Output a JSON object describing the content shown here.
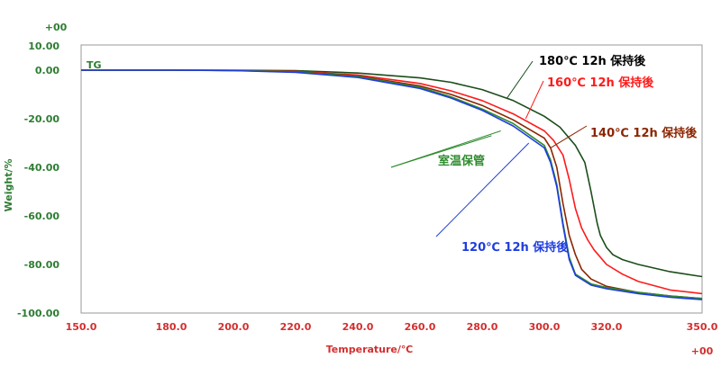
{
  "chart_data": {
    "type": "line",
    "xlabel": "Temperature/℃",
    "ylabel": "Weight/%",
    "xlim": [
      150.0,
      350.0
    ],
    "ylim": [
      -100.0,
      10.0
    ],
    "x_ticks": [
      "150.0",
      "180.0",
      "200.0",
      "220.0",
      "240.0",
      "260.0",
      "280.0",
      "300.0",
      "320.0",
      "350.0"
    ],
    "y_ticks": [
      "10.00",
      "0.00",
      "-20.00",
      "-40.00",
      "-60.00",
      "-80.00",
      "-100.00"
    ],
    "x_tick_values": [
      150,
      180,
      200,
      220,
      240,
      260,
      280,
      300,
      320,
      350
    ],
    "y_tick_values": [
      10,
      0,
      -20,
      -40,
      -60,
      -80,
      -100
    ],
    "x_exponent_label": "+00",
    "y_exponent_label": "+00",
    "curve_label": "TG",
    "series": [
      {
        "name": "180℃ 12h 保持後",
        "color": "#1b4d1b",
        "x": [
          150,
          180,
          200,
          220,
          240,
          260,
          270,
          280,
          290,
          300,
          305,
          310,
          313,
          315,
          317,
          318,
          320,
          322,
          325,
          330,
          340,
          350
        ],
        "y": [
          0,
          0,
          0,
          -0.2,
          -1.2,
          -3.2,
          -5,
          -8,
          -12.5,
          -19,
          -23.5,
          -31,
          -38,
          -50,
          -63,
          -68,
          -73,
          -76,
          -78,
          -80,
          -83,
          -85
        ]
      },
      {
        "name": "160℃ 12h 保持後",
        "color": "#ff1a1a",
        "x": [
          150,
          180,
          200,
          220,
          240,
          260,
          270,
          280,
          290,
          300,
          303,
          306,
          308,
          310,
          312,
          314,
          316,
          320,
          325,
          330,
          340,
          350
        ],
        "y": [
          0,
          0,
          -0.1,
          -0.5,
          -2,
          -5.5,
          -8.5,
          -12.5,
          -18,
          -25,
          -29,
          -35,
          -45,
          -57,
          -65,
          -70,
          -74,
          -80,
          -84,
          -87,
          -90.5,
          -92
        ]
      },
      {
        "name": "140℃ 12h 保持後",
        "color": "#8b2500",
        "x": [
          150,
          180,
          200,
          220,
          240,
          260,
          270,
          280,
          290,
          300,
          302,
          304,
          306,
          308,
          310,
          312,
          315,
          320,
          330,
          340,
          350
        ],
        "y": [
          0,
          0,
          -0.1,
          -0.6,
          -2.4,
          -6.5,
          -10,
          -14.5,
          -20.5,
          -28,
          -32,
          -40,
          -55,
          -68,
          -76,
          -82,
          -86,
          -89,
          -91.5,
          -93,
          -94
        ]
      },
      {
        "name": "室温保管",
        "color": "#2e8b2e",
        "x": [
          150,
          180,
          200,
          220,
          240,
          260,
          270,
          280,
          290,
          300,
          302,
          304,
          306,
          308,
          310,
          315,
          320,
          330,
          340,
          350
        ],
        "y": [
          0,
          0,
          -0.1,
          -0.7,
          -2.6,
          -7,
          -11,
          -16,
          -22,
          -31,
          -37,
          -47,
          -63,
          -77,
          -84,
          -88,
          -89.5,
          -91.5,
          -93,
          -94
        ]
      },
      {
        "name": "120℃ 12h 保持後",
        "color": "#1f3de0",
        "x": [
          150,
          180,
          200,
          220,
          240,
          260,
          270,
          280,
          290,
          300,
          302,
          304,
          306,
          308,
          310,
          315,
          320,
          330,
          340,
          350
        ],
        "y": [
          0,
          0,
          -0.2,
          -0.9,
          -3,
          -7.5,
          -11.5,
          -16.5,
          -23,
          -32,
          -38,
          -48,
          -64,
          -78,
          -84.5,
          -88.5,
          -90,
          -92,
          -93.5,
          -94.5
        ]
      }
    ],
    "annotations": [
      {
        "label": "180℃ 12h 保持後",
        "color": "#000000",
        "points_to_x": 288,
        "points_to_y": -11.5
      },
      {
        "label": "160℃ 12h 保持後",
        "color": "#ff1a1a",
        "points_to_x": 294,
        "points_to_y": -20
      },
      {
        "label": "140℃ 12h 保持後",
        "color": "#8b2500",
        "points_to_x": 302,
        "points_to_y": -32
      },
      {
        "label": "室温保管",
        "color": "#2e8b2e",
        "points_to_x": [
          286,
          283
        ],
        "points_to_y": [
          -25,
          -27
        ]
      },
      {
        "label": "120℃ 12h 保持後",
        "color": "#1f3de0",
        "points_to_x": 295,
        "points_to_y": -30
      }
    ],
    "grid": false
  }
}
